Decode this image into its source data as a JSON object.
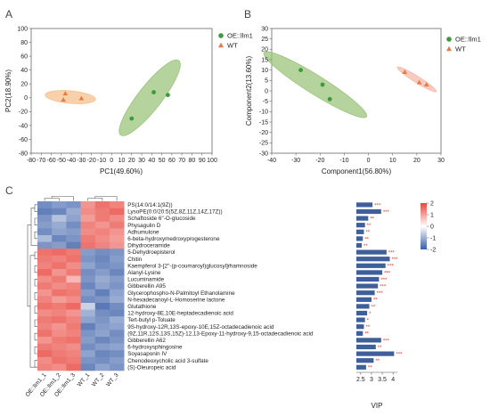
{
  "panel_labels": [
    "A",
    "B",
    "C"
  ],
  "chart_data": [
    {
      "type": "scatter",
      "panel": "A",
      "xlabel": "PC1(49.60%)",
      "ylabel": "PC2(18.90%)",
      "xlim": [
        -80,
        100
      ],
      "ylim": [
        -80,
        100
      ],
      "xticks": [
        "-80",
        "-70",
        "-60",
        "-50",
        "-40",
        "-30",
        "-20",
        "-10",
        "0",
        "10",
        "20",
        "30",
        "40",
        "50",
        "60",
        "70",
        "80",
        "90",
        "100"
      ],
      "yticks": [
        "100",
        "80",
        "60",
        "40",
        "20",
        "0",
        "-20",
        "-40",
        "-60",
        "-80"
      ],
      "legend": [
        {
          "name": "OE::llm1",
          "color": "#3c9a3c",
          "marker": "circle"
        },
        {
          "name": "WT",
          "color": "#e87a45",
          "marker": "triangle"
        }
      ],
      "series": [
        {
          "name": "OE::llm1",
          "color": "#3c9a3c",
          "points": [
            [
              42,
              8
            ],
            [
              56,
              4
            ],
            [
              20,
              -30
            ]
          ]
        },
        {
          "name": "WT",
          "color": "#e87a45",
          "points": [
            [
              -46,
              6
            ],
            [
              -48,
              -3
            ],
            [
              -30,
              -1
            ]
          ]
        }
      ],
      "ellipses": [
        {
          "color": "#9cc47c",
          "cx": 38,
          "cy": 0,
          "rx": 47,
          "ry": 17,
          "angle": 52
        },
        {
          "color": "#f5c28e",
          "cx": -41,
          "cy": 1,
          "rx": 25,
          "ry": 9,
          "angle": -5
        }
      ]
    },
    {
      "type": "scatter",
      "panel": "B",
      "xlabel": "Component1(56.80%)",
      "ylabel": "Component2(13.60%)",
      "xlim": [
        -40,
        30
      ],
      "ylim": [
        -30,
        30
      ],
      "xticks": [
        "-40",
        "-30",
        "-20",
        "-10",
        "0",
        "10",
        "20",
        "30"
      ],
      "yticks": [
        "30",
        "25",
        "20",
        "15",
        "10",
        "5",
        "0",
        "-5",
        "-10",
        "-15",
        "-20",
        "-25",
        "-30"
      ],
      "legend": [
        {
          "name": "OE::llm1",
          "color": "#3c9a3c",
          "marker": "circle"
        },
        {
          "name": "WT",
          "color": "#e87a45",
          "marker": "triangle"
        }
      ],
      "series": [
        {
          "name": "OE::llm1",
          "color": "#3c9a3c",
          "points": [
            [
              -28,
              10
            ],
            [
              -19,
              3
            ],
            [
              -16,
              -4
            ]
          ]
        },
        {
          "name": "WT",
          "color": "#e87a45",
          "points": [
            [
              15,
              9
            ],
            [
              21,
              4
            ],
            [
              24,
              3
            ]
          ]
        }
      ],
      "ellipses": [
        {
          "color": "#9cc47c",
          "cx": -22,
          "cy": 3,
          "rx": 25,
          "ry": 4.5,
          "angle": -32
        },
        {
          "color": "#f5b9a8",
          "cx": 20,
          "cy": 5.5,
          "rx": 9.5,
          "ry": 1.5,
          "angle": -32
        }
      ]
    },
    {
      "type": "heatmap",
      "panel": "C",
      "samples": [
        "OE::llm1_1",
        "OE::llm1_2",
        "OE::llm1_3",
        "WT_1",
        "WT_2",
        "WT_3"
      ],
      "metabolites": [
        "PS(14:0/14:1(9Z))",
        "LysoPE(0:0/20:5(5Z,8Z,11Z,14Z,17Z))",
        "Schaftoside 6''-O-glucoside",
        "Physagulin D",
        "Adhumulone",
        "6-beta-hydroxymedroxyprogesterone",
        "Dihydroceramide",
        "5-Dehydroepisterol",
        "Chitin",
        "Kaempferol 3-[2''-(p-coumaroyl)glucosyl]rhamnoside",
        "Alanyl-Lysine",
        "Lucuminamide",
        "Gibberellin A95",
        "Glycerophospho-N-Palmitoyl Ethanolamine",
        "N-hexadecanoyl-L-Homoserine lactone",
        "Glutathione",
        "12-hydroxy-8E,10E-heptadecadienoic acid",
        "Tert-butyl p-Toluate",
        "9S-hydroxy-12R,13S-epoxy-10E,15Z-octadecadienoic acid",
        "(9Z,11R,12S,13S,15Z)-12,13-Epoxy-11-hydroxy-9,15-octadecadienoic acid",
        "Gibberellin A62",
        "6-hydroxysphingosine",
        "Soyasaponin IV",
        "Chenodeoxycholic acid 3-sulfate",
        "(S)-Oleuropeic acid"
      ],
      "values": [
        [
          -1.3,
          -1.1,
          -1.2,
          1.0,
          1.4,
          1.2
        ],
        [
          -1.5,
          -1.4,
          -0.9,
          1.1,
          1.3,
          1.5
        ],
        [
          -1.2,
          -0.6,
          -1.0,
          0.9,
          1.3,
          1.1
        ],
        [
          -1.1,
          -0.9,
          -1.3,
          1.2,
          1.0,
          1.3
        ],
        [
          -1.3,
          -1.0,
          -1.1,
          1.1,
          1.2,
          1.0
        ],
        [
          -0.7,
          -1.4,
          -1.2,
          1.3,
          1.1,
          0.9
        ],
        [
          -1.2,
          -1.1,
          -1.5,
          1.4,
          1.2,
          1.0
        ],
        [
          1.4,
          1.5,
          1.3,
          -1.1,
          -1.3,
          -1.2
        ],
        [
          1.3,
          1.2,
          1.4,
          -1.2,
          -1.4,
          -1.1
        ],
        [
          1.2,
          1.4,
          1.1,
          -1.0,
          -1.3,
          -1.2
        ],
        [
          1.5,
          1.0,
          1.3,
          -1.3,
          -1.1,
          -1.4
        ],
        [
          1.1,
          1.3,
          0.6,
          -1.2,
          -0.9,
          -1.1
        ],
        [
          1.3,
          1.1,
          1.2,
          -1.4,
          -1.0,
          -1.2
        ],
        [
          1.0,
          1.4,
          1.3,
          -1.1,
          -1.5,
          -1.0
        ],
        [
          1.2,
          0.9,
          1.1,
          -1.3,
          -1.2,
          -0.9
        ],
        [
          1.4,
          1.3,
          1.5,
          -0.4,
          -1.6,
          -1.3
        ],
        [
          1.1,
          1.2,
          1.0,
          -0.8,
          -1.3,
          -1.4
        ],
        [
          1.3,
          1.4,
          1.2,
          -1.0,
          -1.2,
          -0.9
        ],
        [
          1.2,
          1.0,
          1.3,
          -1.5,
          -1.1,
          -1.0
        ],
        [
          1.4,
          1.1,
          1.2,
          -1.2,
          -1.0,
          -1.3
        ],
        [
          1.0,
          1.3,
          1.4,
          -1.1,
          -1.4,
          -1.2
        ],
        [
          1.3,
          1.2,
          1.1,
          -1.3,
          -1.1,
          -1.0
        ],
        [
          1.5,
          1.3,
          1.2,
          -1.0,
          -1.4,
          -1.3
        ],
        [
          1.1,
          1.4,
          1.3,
          -1.2,
          -1.3,
          -1.1
        ],
        [
          1.2,
          1.1,
          1.5,
          -1.4,
          -1.0,
          -1.2
        ]
      ],
      "colorbar_ticks": [
        "2",
        "1",
        "0",
        "-1",
        "-2"
      ],
      "colorbar_colors": {
        "high": "#e8453c",
        "mid": "#ffffff",
        "low": "#3b5fa8"
      }
    },
    {
      "type": "bar",
      "panel": "C-VIP",
      "xlabel": "VIP",
      "xlim": [
        2.3,
        4.2
      ],
      "xticks": [
        "2.5",
        "3",
        "3.5",
        "4"
      ],
      "bar_color": "#3f5f9a",
      "values": [
        3.05,
        3.45,
        2.85,
        2.7,
        2.65,
        2.6,
        2.55,
        3.7,
        3.85,
        3.65,
        3.5,
        3.35,
        3.3,
        3.15,
        3.0,
        2.9,
        2.8,
        2.7,
        2.65,
        2.6,
        3.45,
        3.2,
        4.05,
        3.1,
        2.75
      ],
      "significance": [
        "***",
        "***",
        "**",
        "**",
        "**",
        "**",
        "**",
        "***",
        "***",
        "***",
        "***",
        "***",
        "***",
        "***",
        "**",
        "**",
        "*",
        "*",
        "**",
        "**",
        "***",
        "**",
        "***",
        "**",
        "**"
      ]
    }
  ]
}
